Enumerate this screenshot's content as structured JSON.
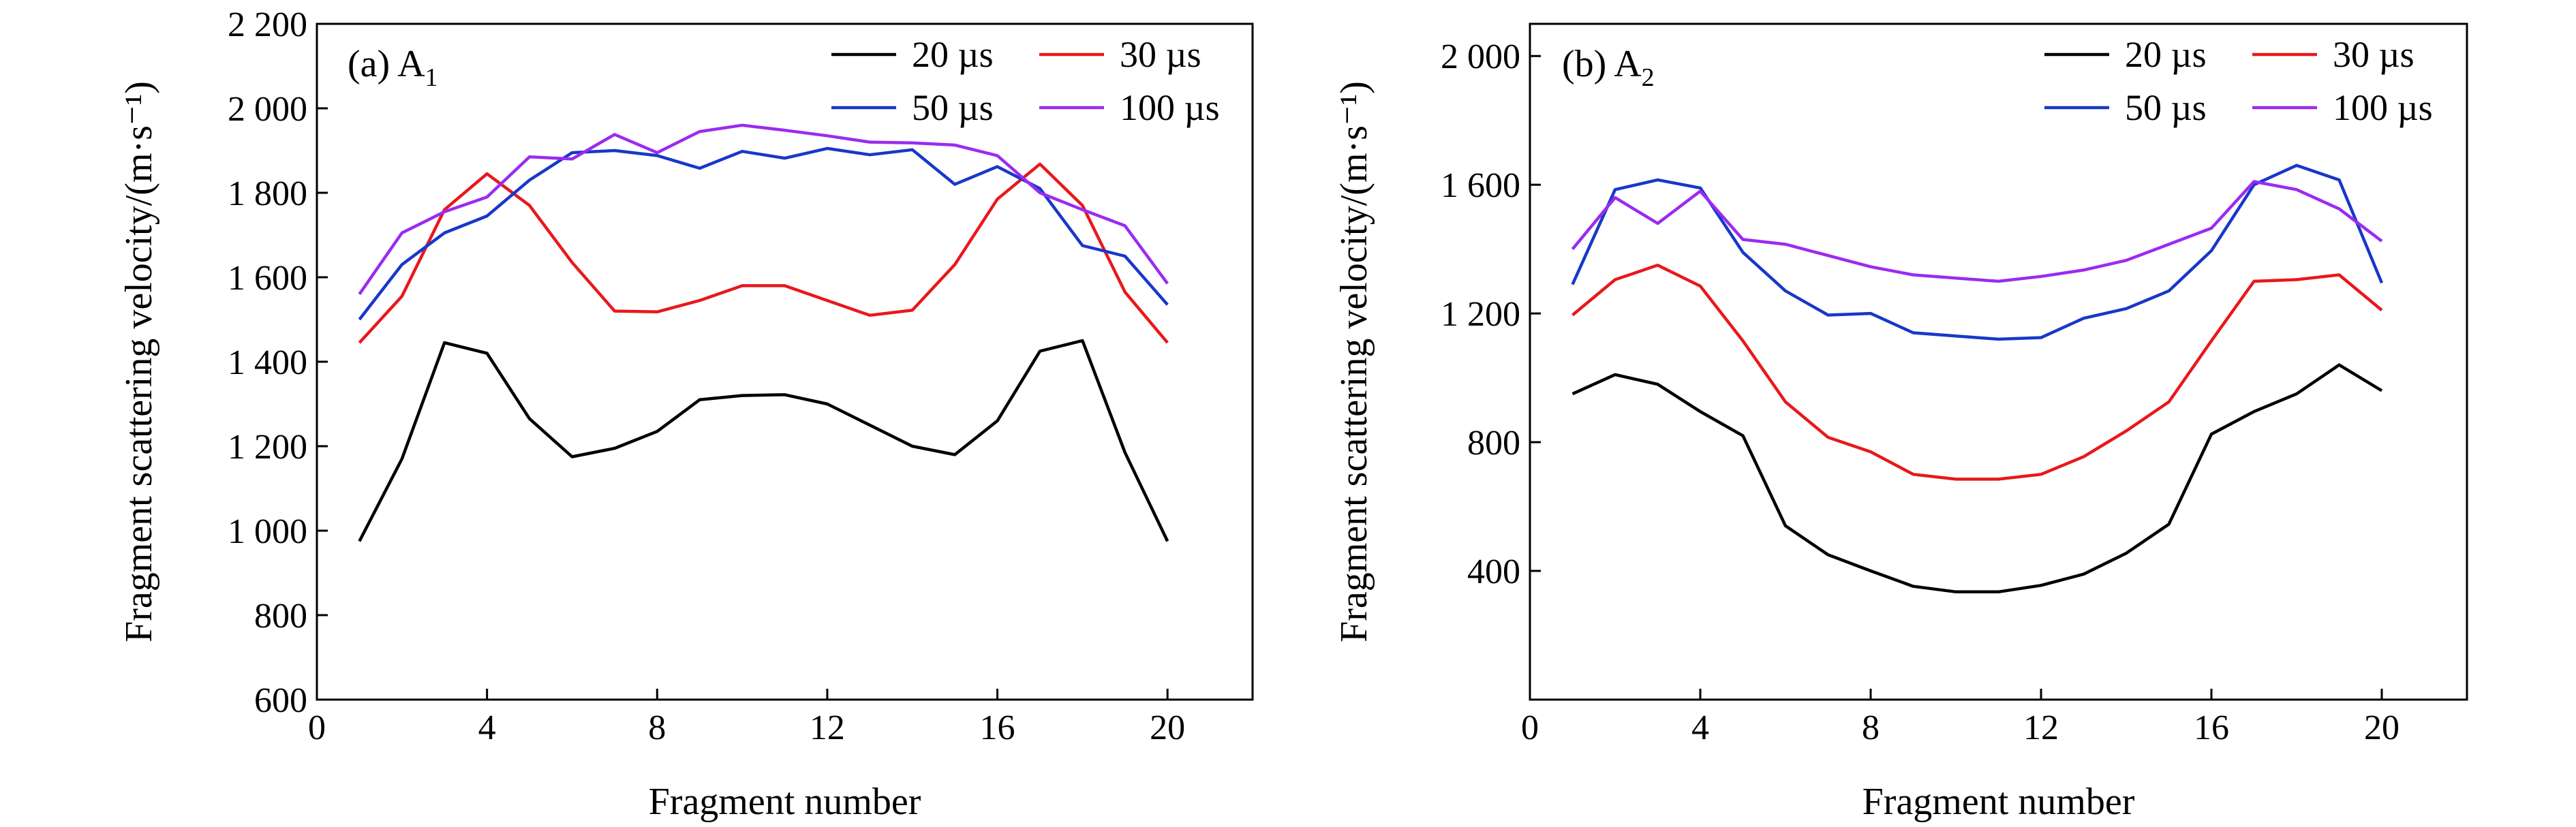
{
  "colors": {
    "20 µs": "#000000",
    "30 µs": "#e8181c",
    "50 µs": "#1738c8",
    "100 µs": "#9b2bf0"
  },
  "chart_data": [
    {
      "type": "line",
      "panel_label": "(a) A",
      "panel_sub": "1",
      "xlabel": "Fragment number",
      "ylabel": "Fragment scattering velocity/(m·s⁻¹)",
      "xlim": [
        0,
        22
      ],
      "ylim": [
        600,
        2200
      ],
      "x_ticks": [
        0,
        4,
        8,
        12,
        16,
        20
      ],
      "x_tick_labels": [
        "0",
        "4",
        "8",
        "12",
        "16",
        "20"
      ],
      "y_ticks": [
        600,
        800,
        1000,
        1200,
        1400,
        1600,
        1800,
        2000,
        2200
      ],
      "y_tick_labels": [
        "600",
        "800",
        "1 000",
        "1 200",
        "1 400",
        "1 600",
        "1 800",
        "2 000",
        "2 200"
      ],
      "legend_position": "top-right",
      "x": [
        1,
        2,
        3,
        4,
        5,
        6,
        7,
        8,
        9,
        10,
        11,
        12,
        13,
        14,
        15,
        16,
        17,
        18,
        19,
        20
      ],
      "series": [
        {
          "name": "20 µs",
          "values": [
            975,
            1170,
            1445,
            1420,
            1265,
            1175,
            1195,
            1235,
            1310,
            1320,
            1322,
            1300,
            1250,
            1200,
            1180,
            1260,
            1425,
            1450,
            1185,
            975
          ]
        },
        {
          "name": "30 µs",
          "values": [
            1445,
            1555,
            1760,
            1845,
            1770,
            1635,
            1520,
            1518,
            1545,
            1580,
            1580,
            1545,
            1510,
            1522,
            1630,
            1785,
            1868,
            1770,
            1565,
            1445
          ]
        },
        {
          "name": "50 µs",
          "values": [
            1500,
            1630,
            1705,
            1745,
            1830,
            1895,
            1900,
            1888,
            1858,
            1898,
            1882,
            1905,
            1890,
            1902,
            1820,
            1862,
            1810,
            1675,
            1650,
            1535
          ]
        },
        {
          "name": "100 µs",
          "values": [
            1560,
            1705,
            1755,
            1790,
            1885,
            1880,
            1938,
            1895,
            1945,
            1960,
            1948,
            1935,
            1920,
            1918,
            1913,
            1888,
            1800,
            1760,
            1722,
            1585
          ]
        }
      ]
    },
    {
      "type": "line",
      "panel_label": "(b) A",
      "panel_sub": "2",
      "xlabel": "Fragment number",
      "ylabel": "Fragment scattering velocity/(m·s⁻¹)",
      "xlim": [
        0,
        22
      ],
      "ylim": [
        0,
        2100
      ],
      "x_ticks": [
        0,
        4,
        8,
        12,
        16,
        20
      ],
      "x_tick_labels": [
        "0",
        "4",
        "8",
        "12",
        "16",
        "20"
      ],
      "y_ticks": [
        400,
        800,
        1200,
        1600,
        2000
      ],
      "y_tick_labels": [
        "400",
        "800",
        "1 200",
        "1 600",
        "2 000"
      ],
      "legend_position": "top-right",
      "x": [
        1,
        2,
        3,
        4,
        5,
        6,
        7,
        8,
        9,
        10,
        11,
        12,
        13,
        14,
        15,
        16,
        17,
        18,
        19,
        20
      ],
      "series": [
        {
          "name": "20 µs",
          "values": [
            950,
            1010,
            980,
            895,
            820,
            540,
            450,
            400,
            352,
            335,
            335,
            355,
            390,
            455,
            545,
            825,
            895,
            950,
            1040,
            960
          ]
        },
        {
          "name": "30 µs",
          "values": [
            1195,
            1305,
            1350,
            1285,
            1115,
            925,
            815,
            770,
            700,
            685,
            685,
            700,
            755,
            835,
            925,
            1115,
            1300,
            1305,
            1320,
            1210
          ]
        },
        {
          "name": "50 µs",
          "values": [
            1290,
            1585,
            1615,
            1590,
            1390,
            1270,
            1195,
            1200,
            1140,
            1130,
            1120,
            1125,
            1185,
            1215,
            1270,
            1395,
            1600,
            1660,
            1615,
            1295
          ]
        },
        {
          "name": "100 µs",
          "values": [
            1400,
            1560,
            1480,
            1580,
            1430,
            1415,
            1380,
            1345,
            1320,
            1310,
            1300,
            1315,
            1335,
            1365,
            1415,
            1465,
            1610,
            1585,
            1525,
            1425
          ]
        }
      ]
    }
  ]
}
